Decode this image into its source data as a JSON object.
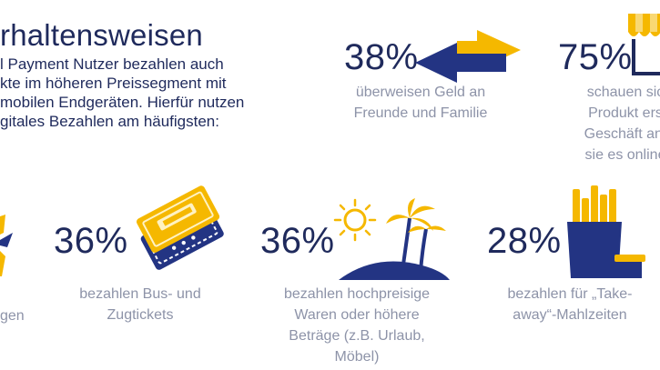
{
  "colors": {
    "navy": "#1f2a5c",
    "yellow": "#f5b800",
    "gray": "#8d93a8",
    "blue": "#233483"
  },
  "heading": {
    "title": "rhaltensweisen"
  },
  "intro": {
    "lines": [
      "l Payment Nutzer bezahlen auch",
      "kte im höheren Preissegment mit",
      "mobilen Endgeräten. Hierfür nutzen",
      "gitales Bezahlen am häufigsten:"
    ]
  },
  "stats": {
    "transfer": {
      "percent": "38%",
      "caption": [
        "überweisen Geld an",
        "Freunde und Familie"
      ],
      "icon": "transfer-arrows-icon"
    },
    "store": {
      "percent": "75%",
      "caption": [
        "schauen sic",
        "Produkt ers",
        "Geschäft an,",
        "sie es online"
      ],
      "icon": "store-awning-icon"
    },
    "partial": {
      "caption": [
        "gen"
      ],
      "icon": "partial-icon"
    },
    "tickets": {
      "percent": "36%",
      "caption": [
        "bezahlen Bus- und",
        "Zugtickets"
      ],
      "icon": "ticket-icon"
    },
    "vacation": {
      "percent": "36%",
      "caption": [
        "bezahlen hochpreisige",
        "Waren oder höhere",
        "Beträge (z.B. Urlaub,",
        "Möbel)"
      ],
      "icon": "island-sun-icon"
    },
    "takeaway": {
      "percent": "28%",
      "caption": [
        "bezahlen für „Take-",
        "away“-Mahlzeiten"
      ],
      "icon": "fries-icon"
    }
  }
}
